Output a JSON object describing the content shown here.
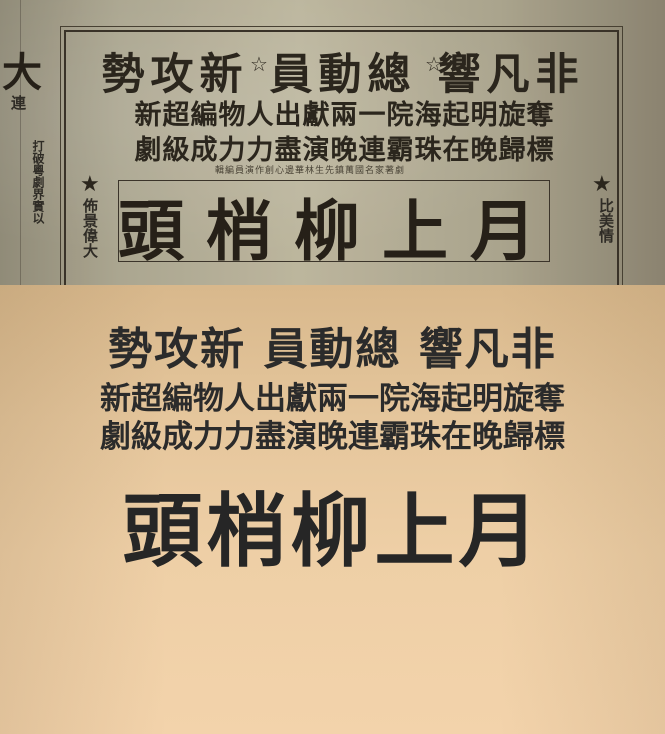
{
  "newspaper": {
    "headline": "勢攻新 員動總 響凡非",
    "line2": "新超編物人出獻兩一院海起明旋奪",
    "line3": "劇級成力力盡演晚連霸珠在晚歸標",
    "small_note": "輯編員演作創心邊華林生先鎮萬國名家著劇",
    "big_title": "頭梢柳上月",
    "left_big_char": "大",
    "left_col_1": "連",
    "left_col_2": "打破粵劇界實以",
    "left_col_3": "佈景偉大",
    "right_col": "比美情"
  },
  "transcription": {
    "headline": "勢攻新 員動總 響凡非",
    "line2": "新超編物人出獻兩一院海起明旋奪",
    "line3": "劇級成力力盡演晚連霸珠在晚歸標",
    "big_title": "頭梢柳上月"
  }
}
